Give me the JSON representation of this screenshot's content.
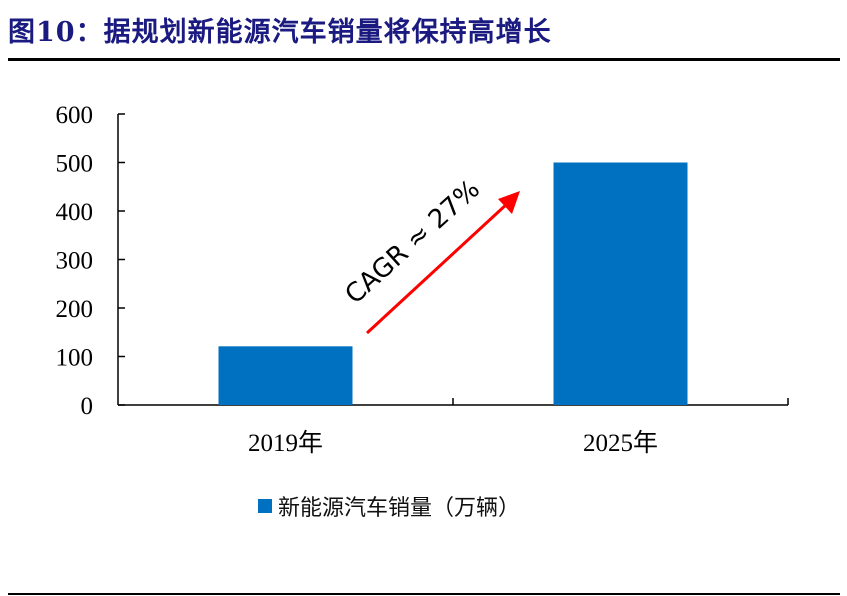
{
  "header": {
    "title": "图10：据规划新能源汽车销量将保持高增长"
  },
  "chart_data": {
    "type": "bar",
    "title": "图10：据规划新能源汽车销量将保持高增长",
    "categories": [
      "2019年",
      "2025年"
    ],
    "series": [
      {
        "name": "新能源汽车销量（万辆）",
        "values": [
          121,
          500
        ],
        "color": "#0070C0"
      }
    ],
    "xlabel": "",
    "ylabel": "",
    "ylim": [
      0,
      600
    ],
    "yticks": [
      "0",
      "100",
      "200",
      "300",
      "400",
      "500",
      "600"
    ],
    "grid": false,
    "legend_position": "bottom",
    "annotations": [
      {
        "text": "CAGR ≈ 27%",
        "type": "arrow",
        "color": "#FF0000",
        "from": "2019年",
        "to": "2025年"
      }
    ]
  },
  "legend": {
    "label": "新能源汽车销量（万辆）",
    "color": "#0070C0"
  }
}
